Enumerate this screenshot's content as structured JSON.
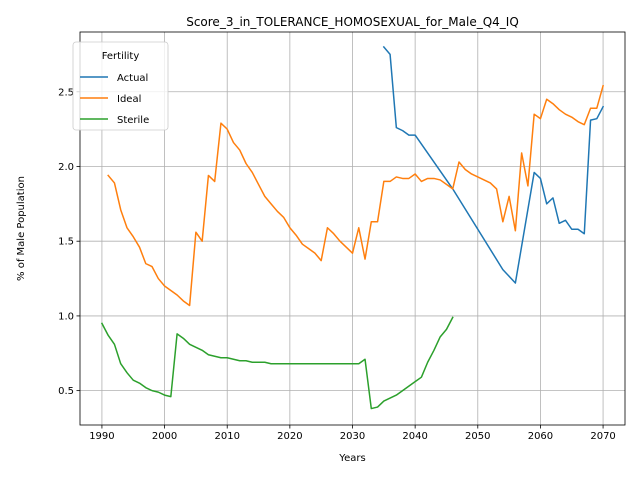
{
  "chart_data": {
    "type": "line",
    "title": "Score_3_in_TOLERANCE_HOMOSEXUAL_for_Male_Q4_IQ",
    "xlabel": "Years",
    "ylabel": "% of Male Population",
    "xlim": [
      1986.5,
      2073.5
    ],
    "ylim": [
      0.27,
      2.9
    ],
    "xticks": [
      1990,
      2000,
      2010,
      2020,
      2030,
      2040,
      2050,
      2060,
      2070
    ],
    "yticks": [
      0.5,
      1.0,
      1.5,
      2.0,
      2.5
    ],
    "grid": true,
    "legend": {
      "title": "Fertility",
      "placement": "top-left"
    },
    "series": [
      {
        "name": "Actual",
        "color": "#1f77b4",
        "points": [
          [
            2035,
            2.8
          ],
          [
            2036,
            2.75
          ],
          [
            2037,
            2.26
          ],
          [
            2038,
            2.24
          ],
          [
            2039,
            2.21
          ],
          [
            2040,
            2.21
          ],
          [
            2046,
            1.85
          ],
          [
            2054,
            1.31
          ],
          [
            2056,
            1.22
          ],
          [
            2059,
            1.96
          ],
          [
            2060,
            1.92
          ],
          [
            2061,
            1.75
          ],
          [
            2062,
            1.79
          ],
          [
            2063,
            1.62
          ],
          [
            2064,
            1.64
          ],
          [
            2065,
            1.58
          ],
          [
            2066,
            1.58
          ],
          [
            2067,
            1.55
          ],
          [
            2068,
            2.31
          ],
          [
            2069,
            2.32
          ],
          [
            2070,
            2.4
          ]
        ]
      },
      {
        "name": "Ideal",
        "color": "#ff7f0e",
        "points": [
          [
            1991,
            1.94
          ],
          [
            1992,
            1.89
          ],
          [
            1993,
            1.71
          ],
          [
            1994,
            1.59
          ],
          [
            1995,
            1.53
          ],
          [
            1996,
            1.46
          ],
          [
            1997,
            1.35
          ],
          [
            1998,
            1.33
          ],
          [
            1999,
            1.25
          ],
          [
            2000,
            1.2
          ],
          [
            2001,
            1.17
          ],
          [
            2002,
            1.14
          ],
          [
            2003,
            1.1
          ],
          [
            2004,
            1.07
          ],
          [
            2005,
            1.56
          ],
          [
            2006,
            1.5
          ],
          [
            2007,
            1.94
          ],
          [
            2008,
            1.9
          ],
          [
            2009,
            2.29
          ],
          [
            2010,
            2.25
          ],
          [
            2011,
            2.16
          ],
          [
            2012,
            2.11
          ],
          [
            2013,
            2.02
          ],
          [
            2014,
            1.96
          ],
          [
            2015,
            1.88
          ],
          [
            2016,
            1.8
          ],
          [
            2017,
            1.75
          ],
          [
            2018,
            1.7
          ],
          [
            2019,
            1.66
          ],
          [
            2020,
            1.59
          ],
          [
            2021,
            1.54
          ],
          [
            2022,
            1.48
          ],
          [
            2023,
            1.45
          ],
          [
            2024,
            1.42
          ],
          [
            2025,
            1.37
          ],
          [
            2026,
            1.59
          ],
          [
            2027,
            1.55
          ],
          [
            2028,
            1.5
          ],
          [
            2029,
            1.46
          ],
          [
            2030,
            1.42
          ],
          [
            2031,
            1.59
          ],
          [
            2032,
            1.38
          ],
          [
            2033,
            1.63
          ],
          [
            2034,
            1.63
          ],
          [
            2035,
            1.9
          ],
          [
            2036,
            1.9
          ],
          [
            2037,
            1.93
          ],
          [
            2038,
            1.92
          ],
          [
            2039,
            1.92
          ],
          [
            2040,
            1.95
          ],
          [
            2041,
            1.9
          ],
          [
            2042,
            1.92
          ],
          [
            2043,
            1.92
          ],
          [
            2044,
            1.91
          ],
          [
            2045,
            1.88
          ],
          [
            2046,
            1.85
          ],
          [
            2047,
            2.03
          ],
          [
            2048,
            1.98
          ],
          [
            2049,
            1.95
          ],
          [
            2050,
            1.93
          ],
          [
            2051,
            1.91
          ],
          [
            2052,
            1.89
          ],
          [
            2053,
            1.85
          ],
          [
            2054,
            1.63
          ],
          [
            2055,
            1.8
          ],
          [
            2056,
            1.57
          ],
          [
            2057,
            2.09
          ],
          [
            2058,
            1.87
          ],
          [
            2059,
            2.35
          ],
          [
            2060,
            2.32
          ],
          [
            2061,
            2.45
          ],
          [
            2062,
            2.42
          ],
          [
            2063,
            2.38
          ],
          [
            2064,
            2.35
          ],
          [
            2065,
            2.33
          ],
          [
            2066,
            2.3
          ],
          [
            2067,
            2.28
          ],
          [
            2068,
            2.39
          ],
          [
            2069,
            2.39
          ],
          [
            2070,
            2.54
          ]
        ]
      },
      {
        "name": "Sterile",
        "color": "#2ca02c",
        "points": [
          [
            1990,
            0.95
          ],
          [
            1991,
            0.87
          ],
          [
            1992,
            0.81
          ],
          [
            1993,
            0.68
          ],
          [
            1994,
            0.62
          ],
          [
            1995,
            0.57
          ],
          [
            1996,
            0.55
          ],
          [
            1997,
            0.52
          ],
          [
            1998,
            0.5
          ],
          [
            1999,
            0.49
          ],
          [
            2000,
            0.47
          ],
          [
            2001,
            0.46
          ],
          [
            2002,
            0.88
          ],
          [
            2003,
            0.85
          ],
          [
            2004,
            0.81
          ],
          [
            2005,
            0.79
          ],
          [
            2006,
            0.77
          ],
          [
            2007,
            0.74
          ],
          [
            2008,
            0.73
          ],
          [
            2009,
            0.72
          ],
          [
            2010,
            0.72
          ],
          [
            2011,
            0.71
          ],
          [
            2012,
            0.7
          ],
          [
            2013,
            0.7
          ],
          [
            2014,
            0.69
          ],
          [
            2015,
            0.69
          ],
          [
            2016,
            0.69
          ],
          [
            2017,
            0.68
          ],
          [
            2020,
            0.68
          ],
          [
            2025,
            0.68
          ],
          [
            2031,
            0.68
          ],
          [
            2032,
            0.71
          ],
          [
            2033,
            0.38
          ],
          [
            2034,
            0.39
          ],
          [
            2035,
            0.43
          ],
          [
            2036,
            0.45
          ],
          [
            2037,
            0.47
          ],
          [
            2038,
            0.5
          ],
          [
            2039,
            0.53
          ],
          [
            2040,
            0.56
          ],
          [
            2041,
            0.59
          ],
          [
            2042,
            0.69
          ],
          [
            2043,
            0.77
          ],
          [
            2044,
            0.86
          ],
          [
            2045,
            0.91
          ],
          [
            2046,
            0.99
          ]
        ]
      }
    ]
  }
}
